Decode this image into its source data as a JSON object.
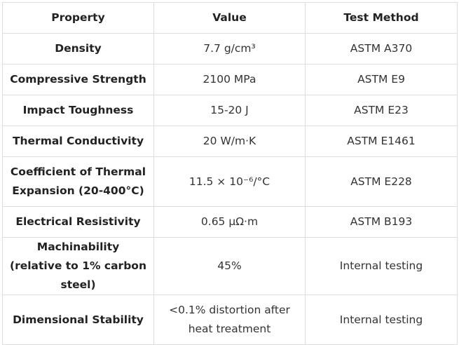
{
  "table": {
    "headers": [
      "Property",
      "Value",
      "Test Method"
    ],
    "rows": [
      {
        "property": "Density",
        "value": "7.7 g/cm³",
        "method": "ASTM A370"
      },
      {
        "property": "Compressive Strength",
        "value": "2100 MPa",
        "method": "ASTM E9"
      },
      {
        "property": "Impact Toughness",
        "value": "15-20 J",
        "method": "ASTM E23"
      },
      {
        "property": "Thermal Conductivity",
        "value": "20 W/m·K",
        "method": "ASTM E1461"
      },
      {
        "property": "Coefficient of Thermal Expansion (20-400°C)",
        "value": "11.5 × 10⁻⁶/°C",
        "method": "ASTM E228"
      },
      {
        "property": "Electrical Resistivity",
        "value": "0.65 μΩ·m",
        "method": "ASTM B193"
      },
      {
        "property": "Machinability (relative to 1% carbon steel)",
        "value": "45%",
        "method": "Internal testing"
      },
      {
        "property": "Dimensional Stability",
        "value": "<0.1% distortion after heat treatment",
        "method": "Internal testing"
      }
    ]
  }
}
